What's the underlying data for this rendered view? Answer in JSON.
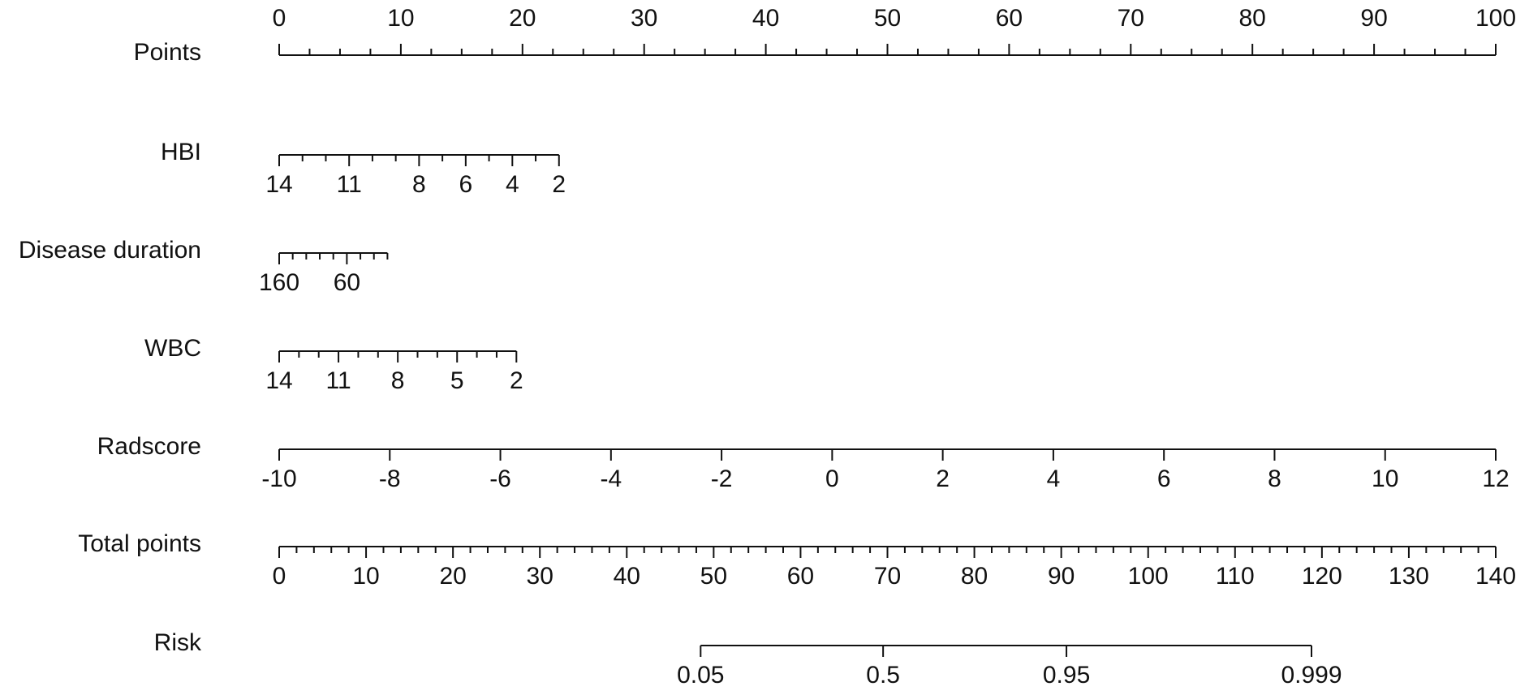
{
  "chart_data": {
    "type": "nomogram",
    "axes": [
      {
        "name": "Points",
        "lim": [
          0,
          100
        ],
        "points": [
          0,
          100
        ],
        "ticks": [
          0,
          10,
          20,
          30,
          40,
          50,
          60,
          70,
          80,
          90,
          100
        ],
        "minor_step": 2.5
      },
      {
        "name": "HBI",
        "lim": [
          14,
          2
        ],
        "points": [
          0,
          23
        ],
        "ticks": [
          14,
          11,
          8,
          6,
          4,
          2
        ],
        "minor_step": 1
      },
      {
        "name": "Disease duration",
        "lim": [
          160,
          0
        ],
        "points": [
          0,
          8.9
        ],
        "ticks": [
          160,
          60
        ],
        "minor_step": 20
      },
      {
        "name": "WBC",
        "lim": [
          14,
          2
        ],
        "points": [
          0,
          19.5
        ],
        "ticks": [
          14,
          11,
          8,
          5,
          2
        ],
        "minor_step": 1
      },
      {
        "name": "Radscore",
        "lim": [
          -10,
          12
        ],
        "points": [
          0,
          100
        ],
        "ticks": [
          -10,
          -8,
          -6,
          -4,
          -2,
          0,
          2,
          4,
          6,
          8,
          10,
          12
        ]
      },
      {
        "name": "Total points",
        "lim": [
          0,
          140
        ],
        "points": [
          0,
          100
        ],
        "ticks": [
          0,
          10,
          20,
          30,
          40,
          50,
          60,
          70,
          80,
          90,
          100,
          110,
          120,
          130,
          140
        ],
        "minor_step": 2
      },
      {
        "name": "Risk",
        "ticks": [
          0.05,
          0.5,
          0.95,
          0.999
        ],
        "tick_total_points": [
          48.5,
          69.5,
          90.6,
          118.8
        ]
      }
    ]
  }
}
